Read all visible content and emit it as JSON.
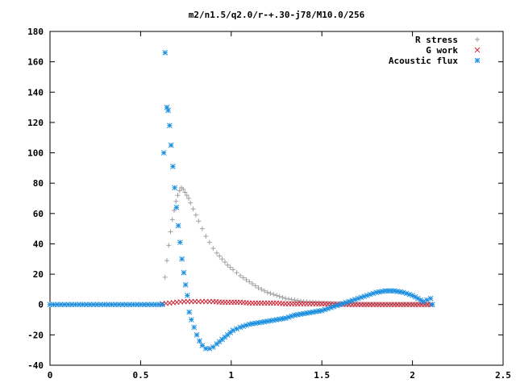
{
  "chart_data": {
    "type": "scatter",
    "title": "m2/n1.5/q2.0/r-+.30-j78/M10.0/256",
    "xlabel": "",
    "ylabel": "",
    "xlim": [
      0,
      2.5
    ],
    "ylim": [
      -40,
      180
    ],
    "x_ticks": [
      0,
      0.5,
      1,
      1.5,
      2,
      2.5
    ],
    "x_tick_labels": [
      "0",
      "0.5",
      "1",
      "1.5",
      "2",
      "2.5"
    ],
    "y_ticks": [
      -40,
      -20,
      0,
      20,
      40,
      60,
      80,
      100,
      120,
      140,
      160,
      180
    ],
    "y_tick_labels": [
      "-40",
      "-20",
      "0",
      "20",
      "40",
      "60",
      "80",
      "100",
      "120",
      "140",
      "160",
      "180"
    ],
    "grid": false,
    "legend_position": "top-right",
    "series": [
      {
        "name": "R stress",
        "marker": "plus",
        "color": "#a0a0a4",
        "x": [
          0.0,
          0.08,
          0.16,
          0.24,
          0.32,
          0.4,
          0.48,
          0.56,
          0.62,
          0.635,
          0.645,
          0.655,
          0.665,
          0.675,
          0.685,
          0.695,
          0.705,
          0.715,
          0.725,
          0.735,
          0.745,
          0.755,
          0.765,
          0.775,
          0.79,
          0.805,
          0.82,
          0.84,
          0.86,
          0.88,
          0.9,
          0.92,
          0.95,
          0.98,
          1.01,
          1.05,
          1.1,
          1.15,
          1.2,
          1.25,
          1.3,
          1.35,
          1.4,
          1.5,
          1.6,
          1.7,
          1.8,
          1.9,
          2.0,
          2.05,
          2.1
        ],
        "y": [
          0,
          0,
          0,
          0,
          0,
          0,
          0,
          0,
          0,
          18,
          29,
          39,
          48,
          56,
          62,
          68,
          72,
          75,
          77,
          76,
          74,
          72,
          70,
          67,
          63,
          59,
          55,
          50,
          45,
          41,
          37,
          34,
          30,
          26,
          23,
          19,
          15,
          11,
          8,
          6,
          4,
          3,
          2,
          1,
          0.5,
          0.3,
          0.2,
          0.1,
          0.1,
          0.1,
          0
        ]
      },
      {
        "name": "G work",
        "marker": "cross",
        "color": "#cc2a3a",
        "x": [
          0.62,
          0.66,
          0.7,
          0.74,
          0.78,
          0.82,
          0.86,
          0.9,
          0.95,
          1.0,
          1.05,
          1.1,
          1.15,
          1.2,
          1.25,
          1.3,
          1.35,
          1.4,
          1.45,
          1.5,
          1.55,
          1.6,
          1.65,
          1.7,
          1.75,
          1.8,
          1.85,
          1.9,
          1.95,
          2.0,
          2.05,
          2.1
        ],
        "y": [
          0.5,
          1,
          1.5,
          2,
          2,
          2,
          2,
          2,
          1.5,
          1.5,
          1.5,
          1,
          1,
          1,
          1,
          0.5,
          0.5,
          0.5,
          0.5,
          0.5,
          0.3,
          0.2,
          0,
          0,
          0,
          0,
          0,
          0,
          0,
          0,
          0,
          0
        ]
      },
      {
        "name": "Acoustic flux",
        "marker": "star",
        "color": "#1a8ee0",
        "x": [
          0.0,
          0.08,
          0.16,
          0.24,
          0.32,
          0.4,
          0.48,
          0.56,
          0.62,
          0.628,
          0.635,
          0.645,
          0.652,
          0.66,
          0.668,
          0.678,
          0.688,
          0.698,
          0.708,
          0.718,
          0.728,
          0.738,
          0.748,
          0.758,
          0.768,
          0.78,
          0.795,
          0.81,
          0.825,
          0.84,
          0.86,
          0.88,
          0.9,
          0.92,
          0.95,
          0.98,
          1.01,
          1.05,
          1.1,
          1.15,
          1.2,
          1.25,
          1.3,
          1.35,
          1.4,
          1.45,
          1.5,
          1.55,
          1.6,
          1.65,
          1.7,
          1.75,
          1.8,
          1.85,
          1.9,
          1.95,
          2.0,
          2.03,
          2.06,
          2.08,
          2.1,
          2.11
        ],
        "y": [
          0,
          0,
          0,
          0,
          0,
          0,
          0,
          0,
          0,
          100,
          166,
          130,
          128,
          118,
          105,
          91,
          77,
          64,
          52,
          41,
          30,
          21,
          13,
          6,
          -5,
          -10,
          -15,
          -20,
          -24,
          -27,
          -29,
          -29,
          -28,
          -26,
          -23,
          -20,
          -17,
          -15,
          -13,
          -12,
          -11,
          -10,
          -9,
          -7,
          -6,
          -5,
          -4,
          -2,
          0,
          2,
          4,
          6,
          8,
          9,
          9,
          8,
          6,
          4,
          2,
          3,
          4,
          0
        ]
      }
    ]
  }
}
